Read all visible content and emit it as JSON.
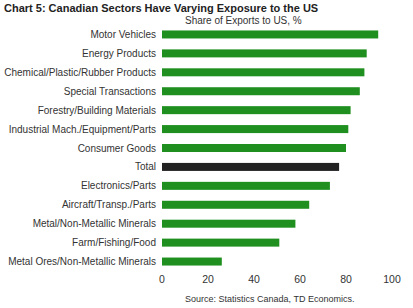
{
  "chart_data": {
    "type": "bar",
    "orientation": "horizontal",
    "title": "Chart 5: Canadian Sectors Have Varying Exposure to the US",
    "subtitle": "Share of Exports to US, %",
    "source": "Source: Statistics Canada, TD Economics.",
    "categories": [
      "Motor Vehicles",
      "Energy Products",
      "Chemical/Plastic/Rubber Products",
      "Special Transactions",
      "Forestry/Building Materials",
      "Industrial Mach./Equipment/Parts",
      "Consumer Goods",
      "Total",
      "Electronics/Parts",
      "Aircraft/Transp./Parts",
      "Metal/Non-Metallic Minerals",
      "Farm/Fishing/Food",
      "Metal Ores/Non-Metallic Minerals"
    ],
    "values": [
      94,
      89,
      88,
      86,
      82,
      81,
      80,
      77,
      73,
      64,
      58,
      51,
      26
    ],
    "colors": [
      "#1f8f1f",
      "#1f8f1f",
      "#1f8f1f",
      "#1f8f1f",
      "#1f8f1f",
      "#1f8f1f",
      "#1f8f1f",
      "#222222",
      "#1f8f1f",
      "#1f8f1f",
      "#1f8f1f",
      "#1f8f1f",
      "#1f8f1f"
    ],
    "xlim": [
      0,
      100
    ],
    "xticks": [
      0,
      20,
      40,
      60,
      80,
      100
    ],
    "grid": false
  }
}
